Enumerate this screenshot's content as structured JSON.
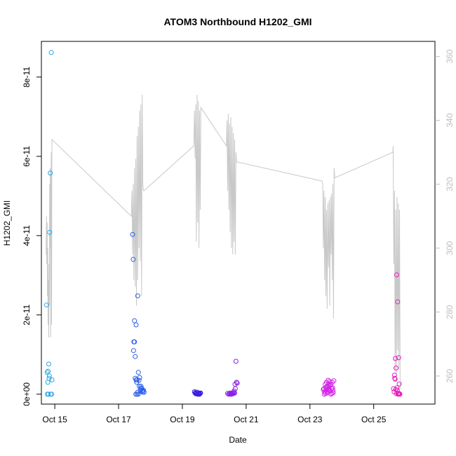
{
  "chart_data": {
    "type": "scatter",
    "title": "ATOM3 Northbound H1202_GMI",
    "xlabel": "Date",
    "ylabel": "H1202_GMI",
    "x_ticks": [
      "Oct 15",
      "Oct 17",
      "Oct 19",
      "Oct 21",
      "Oct 23",
      "Oct 25"
    ],
    "x_tick_values": [
      15,
      17,
      19,
      21,
      23,
      25
    ],
    "xlim": [
      14.58,
      26.92
    ],
    "ylim": [
      -2.5e-12,
      8.9e-11
    ],
    "y_ticks": [
      "0e+00",
      "2e-11",
      "4e-11",
      "6e-11",
      "8e-11"
    ],
    "y_tick_values": [
      0,
      2e-11,
      4e-11,
      6e-11,
      8e-11
    ],
    "y2lim": [
      251.2,
      364.7
    ],
    "y2_ticks": [
      "260",
      "280",
      "300",
      "320",
      "340",
      "360"
    ],
    "y2_tick_values": [
      260,
      280,
      300,
      320,
      340,
      360
    ],
    "line_color": "#c8c8c8",
    "axis_colors": {
      "left": "#000000",
      "right": "#bdbdbd"
    },
    "scatter_series": [
      {
        "color": "#2ba6e6",
        "x": [
          14.74,
          14.76,
          14.79,
          14.81,
          14.84,
          14.86,
          14.89,
          14.91,
          14.77,
          14.8,
          14.83,
          14.87,
          14.9,
          14.82,
          14.78
        ],
        "y": [
          2.25e-11,
          5.5e-12,
          5.8e-12,
          7.6e-12,
          4.08e-11,
          5.58e-11,
          8.62e-11,
          3.6e-12,
          0,
          0,
          4.6e-12,
          0,
          0,
          4e-12,
          3e-12
        ]
      },
      {
        "color": "#2b5ce8",
        "x": [
          17.44,
          17.46,
          17.5,
          17.48,
          17.52,
          17.47,
          17.5,
          17.55,
          17.6,
          17.62,
          17.58,
          17.55,
          17.52,
          17.57,
          17.64,
          17.66,
          17.7,
          17.72,
          17.75,
          17.78,
          17.8,
          17.68,
          17.62,
          17.58,
          17.54,
          17.6,
          17.7,
          17.74,
          17.76,
          17.65
        ],
        "y": [
          4.03e-11,
          3.4e-11,
          1.85e-11,
          1.32e-11,
          9.5e-12,
          1.1e-11,
          1.32e-11,
          1.75e-11,
          2.48e-11,
          5.5e-12,
          3.6e-12,
          3.6e-12,
          4e-12,
          3e-12,
          3.5e-12,
          4.2e-12,
          2e-12,
          1.5e-12,
          1e-12,
          1e-12,
          5e-13,
          1e-12,
          0,
          0,
          0,
          5e-13,
          1.5e-12,
          8e-13,
          5e-13,
          2e-12
        ]
      },
      {
        "color": "#3a1ee0",
        "x": [
          19.38,
          19.4,
          19.42,
          19.44,
          19.46,
          19.48,
          19.5,
          19.52,
          19.54,
          19.56,
          19.41,
          19.45,
          19.49,
          19.53,
          19.57
        ],
        "y": [
          6e-13,
          3e-13,
          1e-13,
          2e-13,
          5e-13,
          0,
          1e-13,
          3e-13,
          0,
          2e-13,
          4e-13,
          1e-13,
          2e-13,
          0,
          3e-13
        ]
      },
      {
        "color": "#8a1fe6",
        "x": [
          20.42,
          20.45,
          20.48,
          20.5,
          20.52,
          20.55,
          20.58,
          20.6,
          20.62,
          20.65,
          20.68,
          20.7,
          20.72,
          20.66,
          20.64,
          20.61,
          20.57,
          20.53
        ],
        "y": [
          2e-13,
          0,
          1e-13,
          3e-13,
          0,
          2e-13,
          1e-13,
          4e-13,
          8e-13,
          2.5e-12,
          8.3e-12,
          3e-12,
          2.8e-12,
          1.4e-12,
          3e-13,
          2e-13,
          1e-13,
          0
        ]
      },
      {
        "color": "#d224e6",
        "x": [
          23.42,
          23.45,
          23.48,
          23.5,
          23.52,
          23.55,
          23.57,
          23.6,
          23.62,
          23.65,
          23.68,
          23.7,
          23.72,
          23.75,
          23.46,
          23.49,
          23.53,
          23.56,
          23.59,
          23.63,
          23.66,
          23.69,
          23.73,
          23.44,
          23.51,
          23.58,
          23.64,
          23.71,
          23.54,
          23.61
        ],
        "y": [
          1.2e-12,
          0,
          2.5e-12,
          1.5e-12,
          3e-12,
          2e-12,
          3.5e-12,
          2e-12,
          3.2e-12,
          2.5e-12,
          1.5e-12,
          3e-12,
          1e-12,
          3.4e-12,
          6e-13,
          2e-13,
          1.2e-12,
          6e-13,
          2.6e-12,
          8e-13,
          0,
          2e-13,
          4e-13,
          1.4e-12,
          1.8e-12,
          1.2e-12,
          2.2e-12,
          1.6e-12,
          3e-13,
          1e-12
        ]
      },
      {
        "color": "#e81fbf",
        "x": [
          25.62,
          25.65,
          25.68,
          25.7,
          25.72,
          25.75,
          25.78,
          25.8,
          25.82,
          25.66,
          25.69,
          25.73,
          25.76,
          25.79,
          25.64,
          25.71,
          25.74,
          25.77,
          25.81,
          25.67
        ],
        "y": [
          1.4e-12,
          4.8e-12,
          9e-12,
          6.6e-12,
          3.01e-11,
          2.33e-11,
          9.2e-12,
          2.6e-12,
          0,
          4e-12,
          1.2e-12,
          1.6e-12,
          0,
          2e-13,
          6e-13,
          1e-13,
          1e-12,
          2e-13,
          1e-13,
          3.8e-12
        ]
      }
    ],
    "line_series": {
      "x": [
        14.73,
        14.74,
        14.75,
        14.76,
        14.77,
        14.78,
        14.79,
        14.8,
        14.81,
        14.82,
        14.83,
        14.84,
        14.85,
        14.86,
        14.87,
        14.88,
        14.89,
        14.9,
        14.91,
        17.4,
        17.42,
        17.44,
        17.46,
        17.48,
        17.5,
        17.52,
        17.54,
        17.56,
        17.58,
        17.6,
        17.62,
        17.64,
        17.66,
        17.68,
        17.7,
        17.72,
        17.74,
        17.76,
        17.78,
        17.8,
        19.36,
        19.38,
        19.4,
        19.42,
        19.44,
        19.46,
        19.48,
        19.5,
        19.52,
        19.54,
        19.56,
        19.58,
        20.38,
        20.4,
        20.42,
        20.44,
        20.46,
        20.48,
        20.5,
        20.52,
        20.54,
        20.56,
        20.58,
        20.6,
        20.62,
        20.64,
        20.66,
        20.68,
        20.7,
        23.38,
        23.4,
        23.42,
        23.44,
        23.46,
        23.48,
        23.5,
        23.52,
        23.54,
        23.56,
        23.58,
        23.6,
        23.62,
        23.64,
        23.66,
        23.68,
        23.7,
        23.72,
        23.74,
        23.76,
        23.78,
        25.6,
        25.61,
        25.63,
        25.65,
        25.67,
        25.69,
        25.71,
        25.73,
        25.75,
        25.77,
        25.79,
        25.81,
        25.83,
        25.85
      ],
      "y": [
        298,
        310,
        295,
        308,
        285,
        300,
        276,
        290,
        272,
        295,
        282,
        320,
        300,
        325,
        272,
        318,
        330,
        276,
        334,
        310,
        318,
        298,
        320,
        290,
        325,
        288,
        328,
        282,
        335,
        290,
        338,
        300,
        343,
        296,
        345,
        285,
        348,
        320,
        318,
        318,
        332,
        343,
        328,
        345,
        302,
        348,
        308,
        346,
        300,
        343,
        312,
        344,
        332,
        340,
        318,
        342,
        312,
        339,
        305,
        341,
        300,
        338,
        298,
        336,
        302,
        334,
        298,
        330,
        327,
        321,
        320,
        300,
        318,
        290,
        316,
        285,
        312,
        281,
        314,
        294,
        315,
        282,
        316,
        298,
        317,
        290,
        320,
        278,
        325,
        322,
        330,
        332,
        295,
        318,
        262,
        312,
        258,
        316,
        268,
        314,
        262,
        312,
        256,
        258
      ]
    }
  }
}
